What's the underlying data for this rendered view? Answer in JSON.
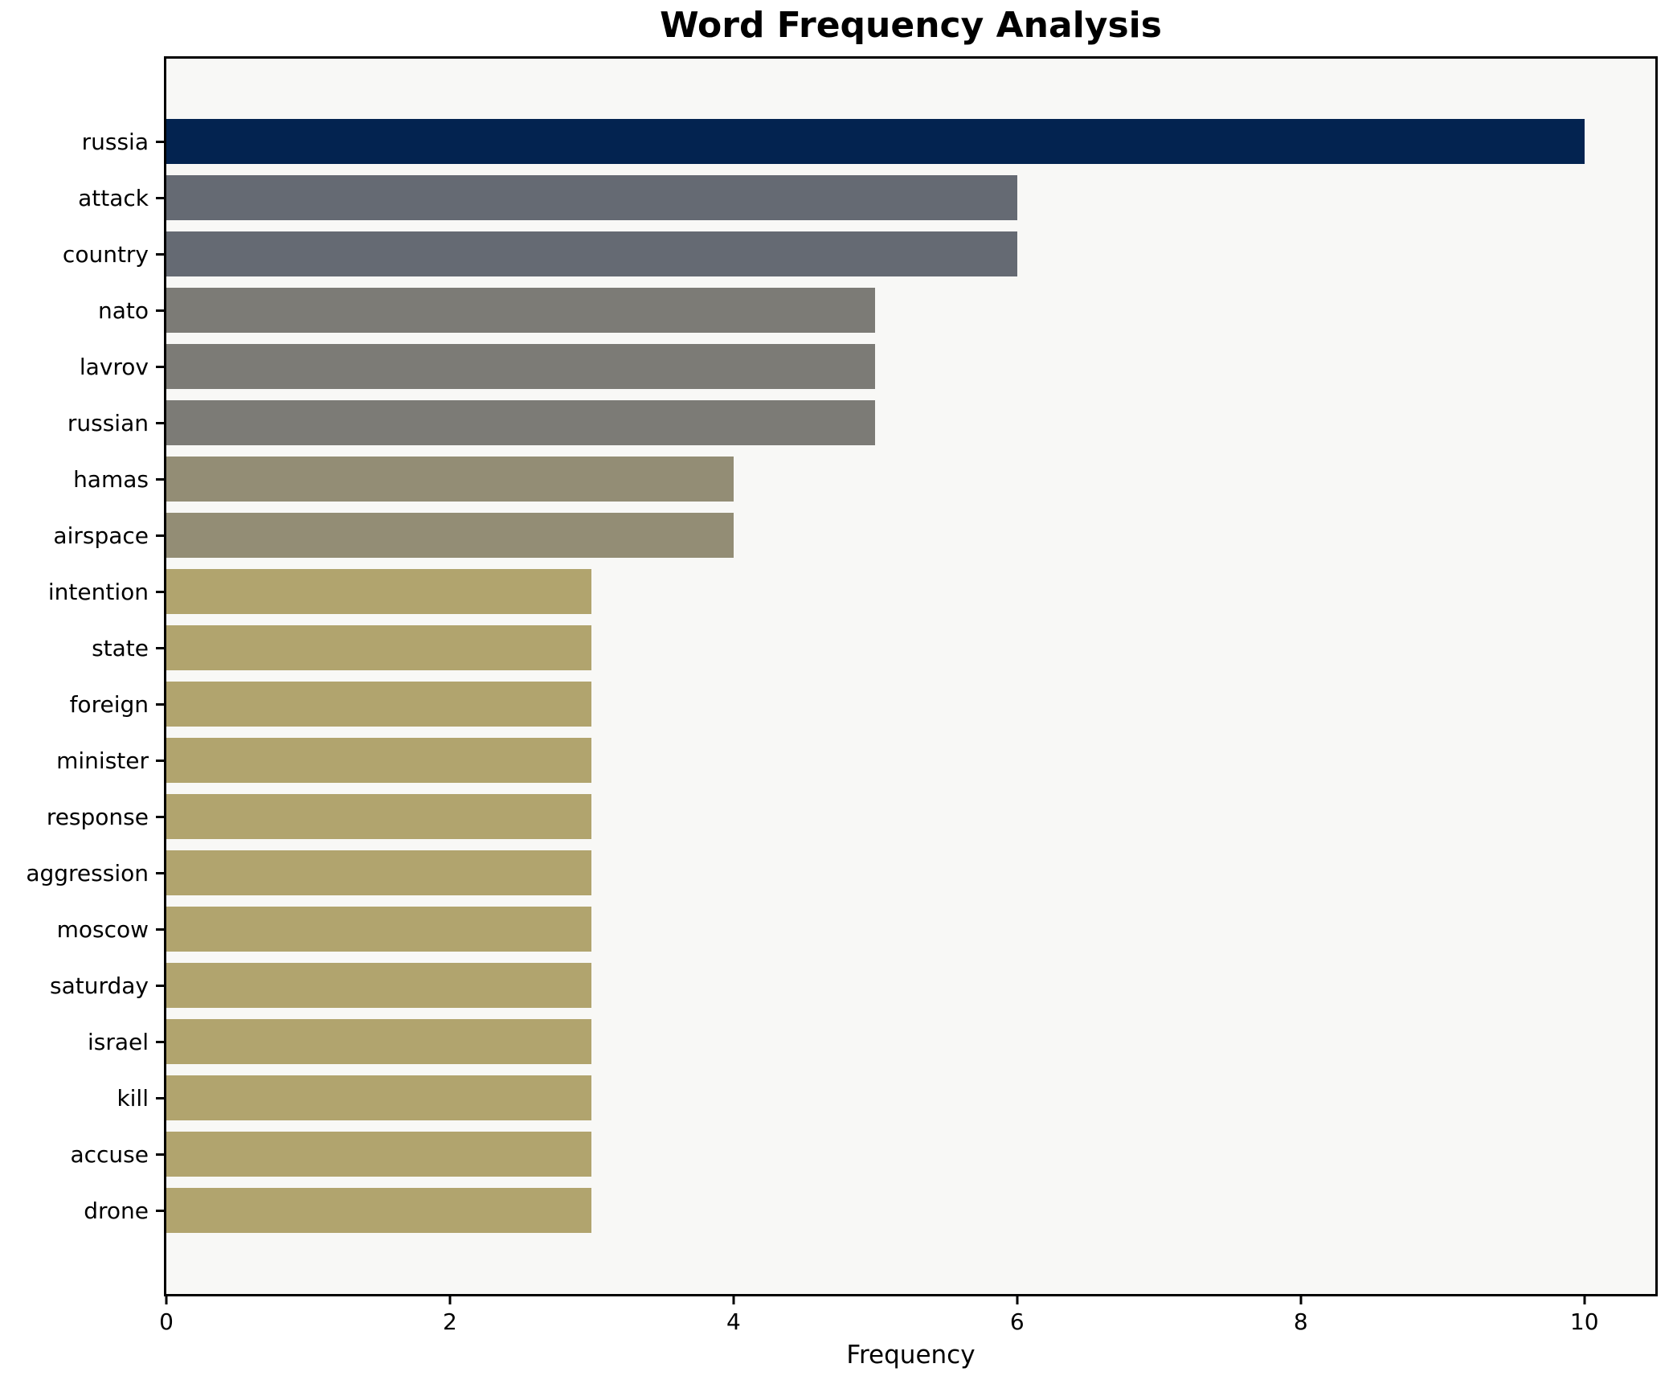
{
  "chart_data": {
    "type": "bar",
    "orientation": "horizontal",
    "title": "Word Frequency Analysis",
    "xlabel": "Frequency",
    "ylabel": "",
    "categories": [
      "russia",
      "attack",
      "country",
      "nato",
      "lavrov",
      "russian",
      "hamas",
      "airspace",
      "intention",
      "state",
      "foreign",
      "minister",
      "response",
      "aggression",
      "moscow",
      "saturday",
      "israel",
      "kill",
      "accuse",
      "drone"
    ],
    "values": [
      10,
      6,
      6,
      5,
      5,
      5,
      4,
      4,
      3,
      3,
      3,
      3,
      3,
      3,
      3,
      3,
      3,
      3,
      3,
      3
    ],
    "xlim": [
      0,
      10.5
    ],
    "xticks": [
      0,
      2,
      4,
      6,
      8,
      10
    ],
    "grid": false,
    "legend": null,
    "bar_colors": [
      "#032350",
      "#656a73",
      "#656a73",
      "#7c7b76",
      "#7c7b76",
      "#7c7b76",
      "#938d75",
      "#938d75",
      "#b1a46e",
      "#b1a46e",
      "#b1a46e",
      "#b1a46e",
      "#b1a46e",
      "#b1a46e",
      "#b1a46e",
      "#b1a46e",
      "#b1a46e",
      "#b1a46e",
      "#b1a46e",
      "#b1a46e"
    ],
    "colors": {
      "plot_background": "#f8f8f6",
      "figure_background": "#ffffff",
      "spine": "#000000",
      "text": "#000000"
    }
  }
}
